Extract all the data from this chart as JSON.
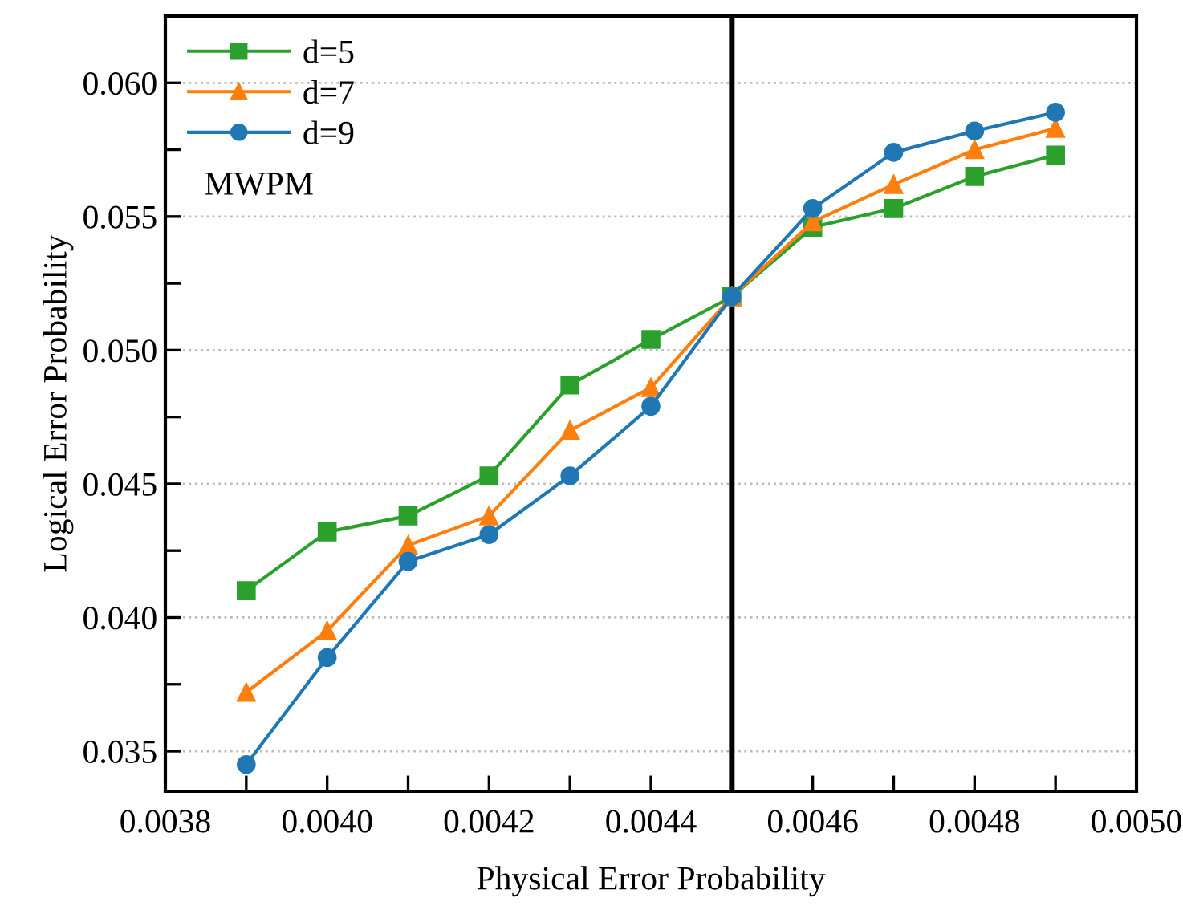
{
  "chart_data": {
    "type": "line",
    "xlabel": "Physical Error Probability",
    "ylabel": "Logical Error Probability",
    "x": [
      0.0039,
      0.004,
      0.0041,
      0.0042,
      0.0043,
      0.0044,
      0.0045,
      0.0046,
      0.0047,
      0.0048,
      0.0049
    ],
    "series": [
      {
        "name": "d=5",
        "color": "#2ca02c",
        "marker": "square",
        "values": [
          0.041,
          0.0432,
          0.0438,
          0.0453,
          0.0487,
          0.0504,
          0.052,
          0.0546,
          0.0553,
          0.0565,
          0.0573
        ]
      },
      {
        "name": "d=7",
        "color": "#ff7f0e",
        "marker": "triangle",
        "values": [
          0.0372,
          0.0395,
          0.0427,
          0.0438,
          0.047,
          0.0486,
          0.052,
          0.0548,
          0.0562,
          0.0575,
          0.0583
        ]
      },
      {
        "name": "d=9",
        "color": "#1f77b4",
        "marker": "circle",
        "values": [
          0.0345,
          0.0385,
          0.0421,
          0.0431,
          0.0453,
          0.0479,
          0.052,
          0.0553,
          0.0574,
          0.0582,
          0.0589
        ]
      }
    ],
    "xlim": [
      0.0038,
      0.005
    ],
    "xticks": [
      {
        "value": 0.0038,
        "label": "0.0038"
      },
      {
        "value": 0.0039,
        "label": null
      },
      {
        "value": 0.004,
        "label": "0.0040"
      },
      {
        "value": 0.0041,
        "label": null
      },
      {
        "value": 0.0042,
        "label": "0.0042"
      },
      {
        "value": 0.0043,
        "label": null
      },
      {
        "value": 0.0044,
        "label": "0.0044"
      },
      {
        "value": 0.0045,
        "label": null
      },
      {
        "value": 0.0046,
        "label": "0.0046"
      },
      {
        "value": 0.0047,
        "label": null
      },
      {
        "value": 0.0048,
        "label": "0.0048"
      },
      {
        "value": 0.0049,
        "label": null
      },
      {
        "value": 0.005,
        "label": "0.0050"
      }
    ],
    "ylim": [
      0.0335,
      0.0625
    ],
    "yticks": [
      {
        "value": 0.035,
        "label": "0.035"
      },
      {
        "value": 0.0375,
        "label": null
      },
      {
        "value": 0.04,
        "label": "0.040"
      },
      {
        "value": 0.0425,
        "label": null
      },
      {
        "value": 0.045,
        "label": "0.045"
      },
      {
        "value": 0.0475,
        "label": null
      },
      {
        "value": 0.05,
        "label": "0.050"
      },
      {
        "value": 0.0525,
        "label": null
      },
      {
        "value": 0.055,
        "label": "0.055"
      },
      {
        "value": 0.0575,
        "label": null
      },
      {
        "value": 0.06,
        "label": "0.060"
      }
    ],
    "ref_lines": [
      {
        "axis": "x",
        "value": 0.0045,
        "color": "#000000"
      }
    ],
    "annotations": [
      "MWPM"
    ],
    "grid": "y",
    "legend": "top left",
    "line_style": "solid"
  }
}
